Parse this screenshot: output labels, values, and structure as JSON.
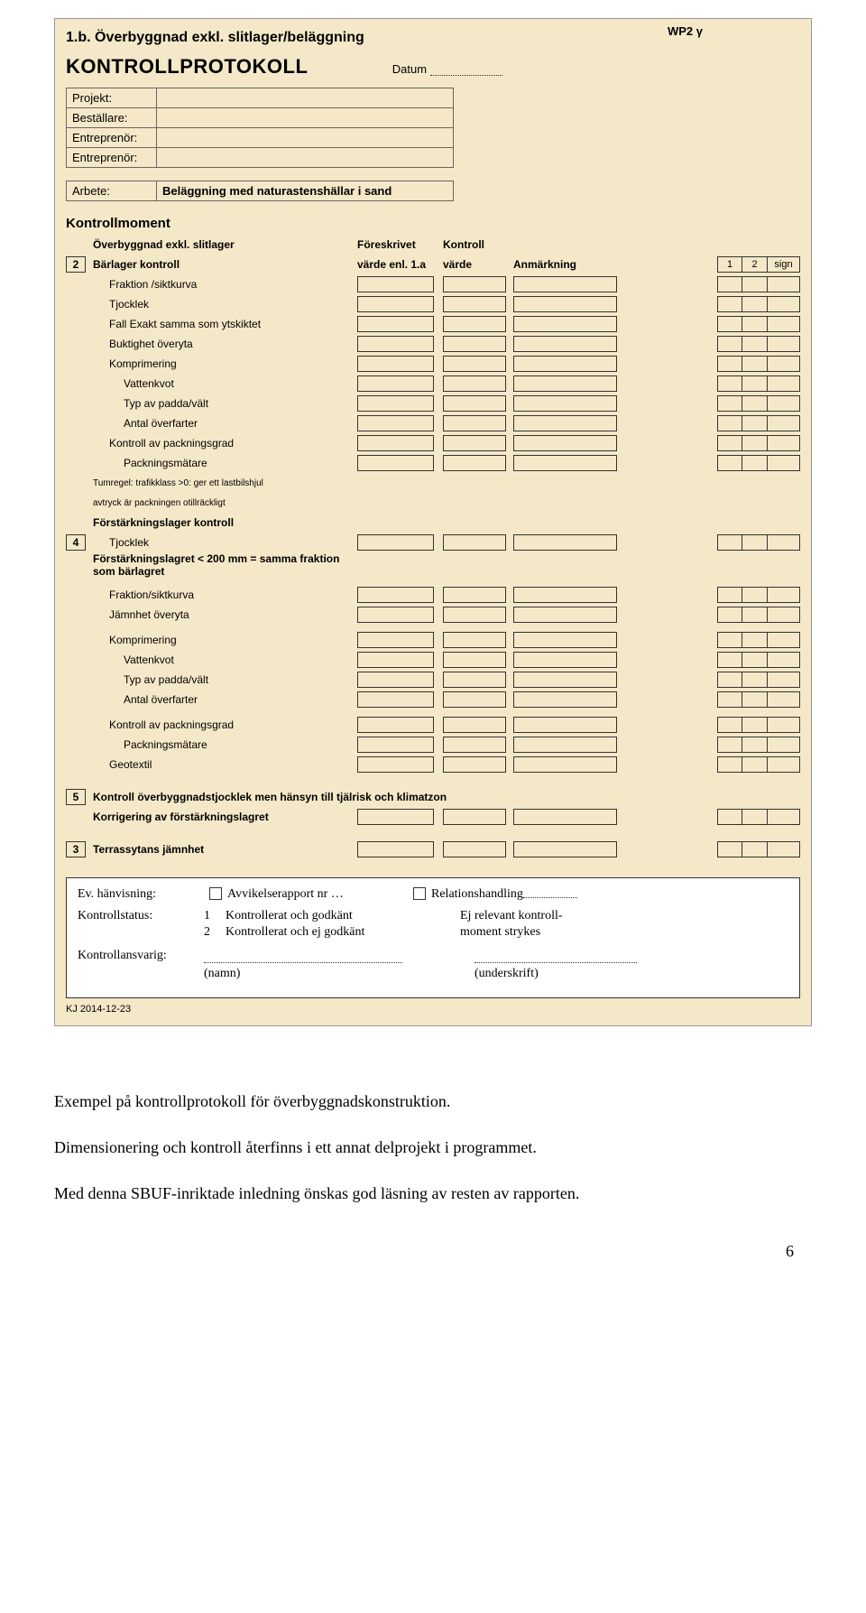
{
  "header": {
    "wp": "WP2 γ",
    "title1b": "1.b. Överbyggnad exkl. slitlager/beläggning",
    "kontrollprotokoll": "KONTROLLPROTOKOLL",
    "datum_label": "Datum"
  },
  "info": {
    "projekt_lbl": "Projekt:",
    "bestallare_lbl": "Beställare:",
    "entreprenor1_lbl": "Entreprenör:",
    "entreprenor2_lbl": "Entreprenör:",
    "arbete_lbl": "Arbete:",
    "arbete_val": "Beläggning med naturastenshällar i sand"
  },
  "headers": {
    "kontrollmoment": "Kontrollmoment",
    "overbyggnad": "Överbyggnad exkl. slitlager",
    "foreskrivet1": "Föreskrivet",
    "foreskrivet2": "värde enl. 1.a",
    "kontroll1": "Kontroll",
    "kontroll2": "värde",
    "anmarkning": "Anmärkning",
    "c1": "1",
    "c2": "2",
    "csign": "sign"
  },
  "sec2": {
    "num": "2",
    "title": "Bärlager kontroll",
    "rows": [
      "Fraktion /siktkurva",
      "Tjocklek",
      "Fall Exakt samma som ytskiktet",
      "Buktighet överyta",
      "Komprimering",
      "Vattenkvot",
      "Typ av padda/vält",
      "Antal överfarter",
      "Kontroll av packningsgrad",
      "Packningsmätare"
    ],
    "note1": "Tumregel: trafikklass >0: ger ett lastbilshjul",
    "note2": "avtryck är packningen otillräckligt"
  },
  "sec4": {
    "num": "4",
    "title": "Förstärkningslager kontroll",
    "r1": "Tjocklek",
    "note": "Förstärkningslagret < 200 mm = samma fraktion som bärlagret",
    "rows": [
      "Fraktion/siktkurva",
      "Jämnhet överyta",
      "Komprimering",
      "Vattenkvot",
      "Typ av padda/vält",
      "Antal överfarter",
      "Kontroll av packningsgrad",
      "Packningsmätare",
      "Geotextil"
    ]
  },
  "sec5": {
    "num": "5",
    "title": "Kontroll överbyggnadstjocklek men hänsyn till tjälrisk och klimatzon",
    "r1": "Korrigering av förstärkningslagret"
  },
  "sec3": {
    "num": "3",
    "title": "Terrassytans jämnhet"
  },
  "footer": {
    "ev_hanv": "Ev. hänvisning:",
    "avvik": "Avvikelserapport nr …",
    "relhand": "Relationshandling",
    "kontrollstatus": "Kontrollstatus:",
    "k1n": "1",
    "k1t": "Kontrollerat och godkänt",
    "k2n": "2",
    "k2t": "Kontrollerat och ej godkänt",
    "ejrel1": "Ej relevant kontroll-",
    "ejrel2": "moment strykes",
    "kontrollansvarig": "Kontrollansvarig:",
    "namn": "(namn)",
    "underskrift": "(underskrift)",
    "kj": "KJ 2014-12-23"
  },
  "caption": {
    "p1": "Exempel på kontrollprotokoll för överbyggnadskonstruktion.",
    "p2": "Dimensionering och kontroll återfinns i ett annat delprojekt i programmet.",
    "p3": "Med denna SBUF-inriktade inledning önskas god läsning av resten av rapporten."
  },
  "pagenum": "6",
  "colors": {
    "form_bg": "#f5e8c8",
    "border": "#666666",
    "box_border": "#333333"
  }
}
